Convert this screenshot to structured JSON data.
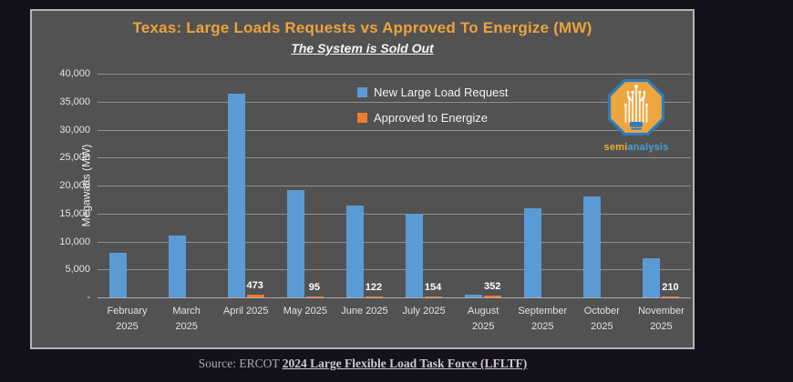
{
  "title": "Texas: Large Loads Requests vs Approved To Energize (MW)",
  "subtitle": "The System is Sold Out",
  "y_axis_title": "Megawatts (MW)",
  "source": {
    "prefix": "Source: ERCOT ",
    "link_text": "2024 Large Flexible Load Task Force (LFLTF)"
  },
  "logo": {
    "part1": "semi",
    "part2": "analysis",
    "icon": "semianalysis-octagon-circuit-bulb-logo"
  },
  "colors": {
    "outer_background": "#14111c",
    "panel_background": "#525252",
    "panel_border": "#b5b5b5",
    "title": "#EBA33C",
    "gridline": "#8f8f8f",
    "request_blue": "#5B9BD5",
    "approved_orange": "#ED7D31",
    "text_light": "#f2f2f2"
  },
  "chart_data": {
    "type": "bar",
    "title": "Texas: Large Loads Requests vs Approved To Energize (MW)",
    "subtitle": "The System is Sold Out",
    "xlabel": "",
    "ylabel": "Megawatts (MW)",
    "ylim": [
      0,
      40000
    ],
    "ytick_interval": 5000,
    "ytick_labels": [
      "40,000",
      "35,000",
      "30,000",
      "25,000",
      "20,000",
      "15,000",
      "10,000",
      "5,000",
      "-"
    ],
    "grid": true,
    "legend_position": "top-center-inside",
    "categories": [
      "February 2025",
      "March 2025",
      "April 2025",
      "May 2025",
      "June 2025",
      "July 2025",
      "August 2025",
      "September 2025",
      "October 2025",
      "November 2025"
    ],
    "category_display": [
      "February\n2025",
      "March\n2025",
      "April 2025",
      "May 2025",
      "June 2025",
      "July 2025",
      "August\n2025",
      "September\n2025",
      "October\n2025",
      "November\n2025"
    ],
    "series": [
      {
        "name": "New Large Load Request",
        "color": "#5B9BD5",
        "values": [
          8000,
          11000,
          36500,
          19200,
          16500,
          15000,
          500,
          16000,
          18000,
          7000
        ]
      },
      {
        "name": "Approved to Energize",
        "color": "#ED7D31",
        "values": [
          0,
          0,
          473,
          95,
          122,
          154,
          352,
          0,
          0,
          210
        ],
        "data_labels": [
          "",
          "",
          "473",
          "95",
          "122",
          "154",
          "352",
          "",
          "",
          "210"
        ]
      }
    ]
  }
}
